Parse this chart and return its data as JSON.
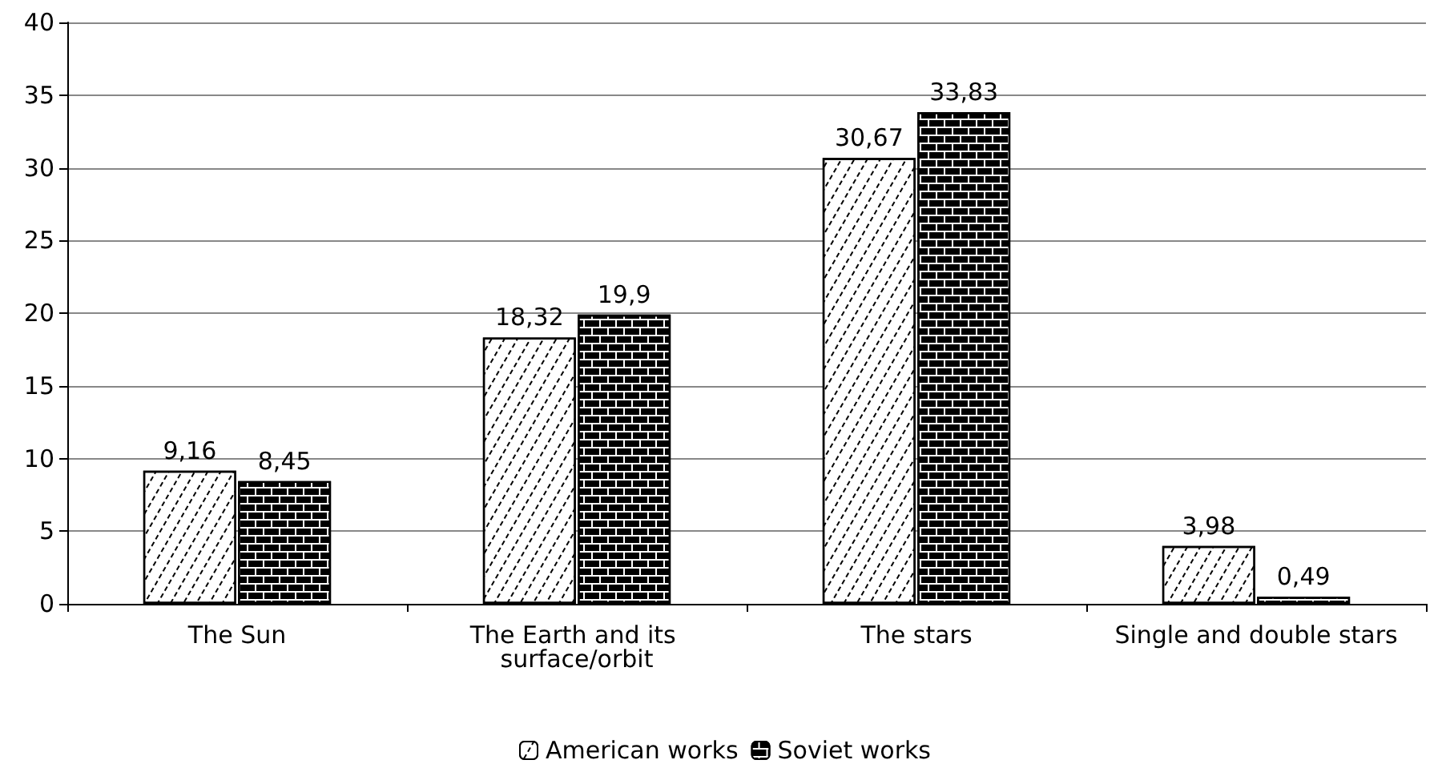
{
  "chart_data": {
    "type": "bar",
    "categories": [
      "The Sun",
      "The Earth and its surface/orbit",
      "The stars",
      "Single and double stars"
    ],
    "series": [
      {
        "name": "American works",
        "color": "#ffffff",
        "values": [
          9.16,
          18.32,
          30.67,
          3.98
        ],
        "value_labels": [
          "9,16",
          "18,32",
          "30,67",
          "3,98"
        ]
      },
      {
        "name": "Soviet works",
        "color": "#ffffff",
        "values": [
          8.45,
          19.9,
          33.83,
          0.49
        ],
        "value_labels": [
          "8,45",
          "19,9",
          "33,83",
          "0,49"
        ]
      }
    ],
    "ylim": [
      0,
      40
    ],
    "yticks": [
      0,
      5,
      10,
      15,
      20,
      25,
      30,
      35,
      40
    ],
    "grid": "y",
    "legend": "bottom"
  }
}
